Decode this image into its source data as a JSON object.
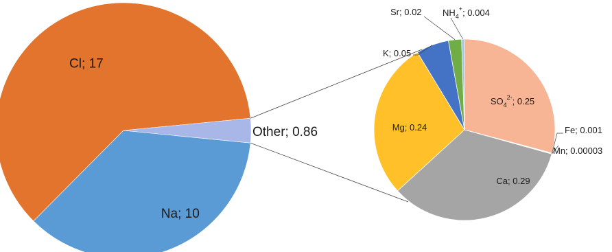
{
  "chart_data": [
    {
      "type": "pie",
      "role": "main",
      "slices": [
        {
          "name": "Cl",
          "value": 17,
          "label": "Cl; 17",
          "color": "#E3742E"
        },
        {
          "name": "Na",
          "value": 10,
          "label": "Na; 10",
          "color": "#5B9BD5"
        },
        {
          "name": "Other",
          "value": 0.86,
          "label": "Other; 0.86",
          "color": "#A9B6E8"
        }
      ]
    },
    {
      "type": "pie",
      "role": "breakdown-of-other",
      "slices": [
        {
          "name": "SO4 2-",
          "value": 0.25,
          "label": "SO4 2-; 0.25",
          "label_parts": [
            "SO",
            "4",
            "2-",
            "; 0.25"
          ],
          "color": "#F8B595"
        },
        {
          "name": "Fe",
          "value": 0.001,
          "label": "Fe; 0.001",
          "color": "#D9A18A"
        },
        {
          "name": "Mn",
          "value": 3e-05,
          "label": "Mn; 0.00003",
          "color": "#BDBDBD"
        },
        {
          "name": "Ca",
          "value": 0.29,
          "label": "Ca; 0.29",
          "color": "#A5A5A5"
        },
        {
          "name": "Mg",
          "value": 0.24,
          "label": "Mg; 0.24",
          "color": "#FFC02A"
        },
        {
          "name": "K",
          "value": 0.05,
          "label": "K; 0.05",
          "color": "#4472C4"
        },
        {
          "name": "Sr",
          "value": 0.02,
          "label": "Sr; 0.02",
          "color": "#70AD47"
        },
        {
          "name": "NH4+",
          "value": 0.004,
          "label": "NH4+; 0.004",
          "label_parts": [
            "NH",
            "4",
            "+",
            "; 0.004"
          ],
          "color": "#9DC3E6"
        }
      ]
    }
  ]
}
